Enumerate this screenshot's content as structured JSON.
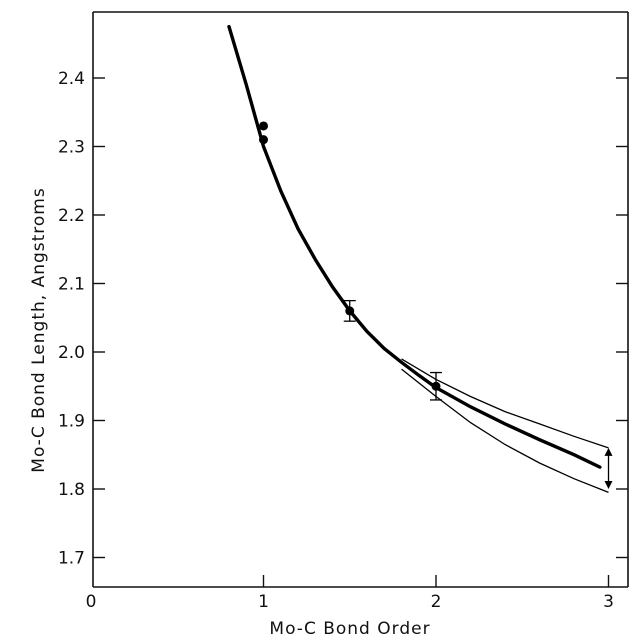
{
  "chart_data": {
    "type": "line",
    "title": "",
    "xlabel": "Mo-C Bond Order",
    "ylabel": "Mo-C Bond Length, Angstroms",
    "xlim": [
      0,
      3.2
    ],
    "ylim": [
      1.65,
      2.49
    ],
    "x_ticks": [
      0,
      1,
      2,
      3
    ],
    "x_tick_labels": [
      "0",
      "1",
      "2",
      "3"
    ],
    "y_ticks": [
      1.7,
      1.8,
      1.9,
      2.0,
      2.1,
      2.2,
      2.3,
      2.4
    ],
    "y_tick_labels": [
      "1.7",
      "1.8",
      "1.9",
      "2.0",
      "2.1",
      "2.2",
      "2.3",
      "2.4"
    ],
    "grid": false,
    "series": [
      {
        "style": "thick-line",
        "x": [
          0.8,
          0.9,
          1.0,
          1.1,
          1.2,
          1.3,
          1.4,
          1.5,
          1.6,
          1.7,
          1.8,
          1.9,
          2.0,
          2.2,
          2.4,
          2.6,
          2.8,
          2.95
        ],
        "y": [
          2.475,
          2.39,
          2.3,
          2.235,
          2.18,
          2.135,
          2.095,
          2.06,
          2.03,
          2.005,
          1.985,
          1.966,
          1.948,
          1.92,
          1.895,
          1.872,
          1.85,
          1.832
        ]
      },
      {
        "style": "thin-line-upper",
        "x": [
          1.8,
          2.0,
          2.2,
          2.4,
          2.6,
          2.8,
          3.0
        ],
        "y": [
          1.99,
          1.96,
          1.935,
          1.913,
          1.895,
          1.877,
          1.86
        ]
      },
      {
        "style": "thin-line-lower",
        "x": [
          1.8,
          2.0,
          2.2,
          2.4,
          2.6,
          2.8,
          3.0
        ],
        "y": [
          1.975,
          1.935,
          1.897,
          1.865,
          1.838,
          1.815,
          1.795
        ]
      }
    ],
    "points": [
      {
        "x": 1.0,
        "y": 2.33
      },
      {
        "x": 1.0,
        "y": 2.31
      },
      {
        "x": 1.5,
        "y": 2.06,
        "yerr": [
          2.045,
          2.075
        ]
      },
      {
        "x": 2.0,
        "y": 1.95,
        "yerr": [
          1.93,
          1.97
        ]
      }
    ],
    "range_arrow": {
      "x": 3.0,
      "y": [
        1.8,
        1.86
      ]
    }
  }
}
